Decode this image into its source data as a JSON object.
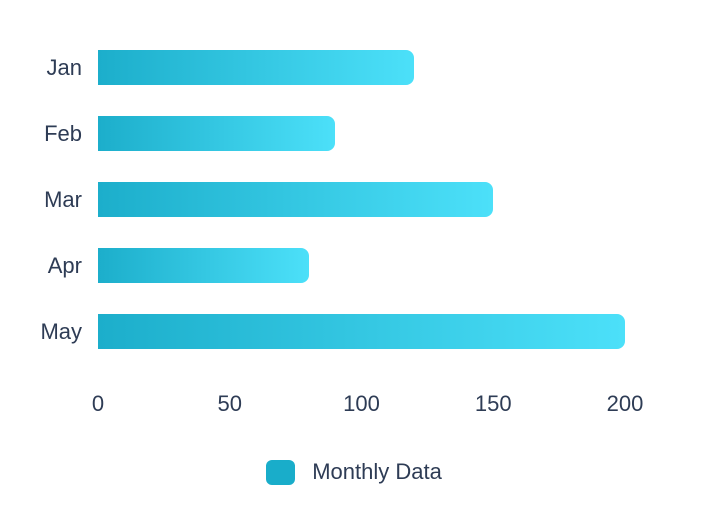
{
  "chart_data": {
    "type": "bar",
    "orientation": "horizontal",
    "title": "",
    "xlabel": "",
    "ylabel": "",
    "categories": [
      "Jan",
      "Feb",
      "Mar",
      "Apr",
      "May"
    ],
    "series": [
      {
        "name": "Monthly Data",
        "values": [
          120,
          90,
          150,
          80,
          200
        ]
      }
    ],
    "xlim": [
      0,
      200
    ],
    "x_ticks": [
      0,
      50,
      100,
      150,
      200
    ],
    "grid": false,
    "legend_position": "bottom",
    "colors": {
      "bar_gradient_start": "#1caecb",
      "bar_gradient_end": "#4ce0f9",
      "legend_swatch": "#19adca",
      "text": "#2e3c55",
      "background": "#ffffff"
    }
  },
  "legend": {
    "label": "Monthly Data"
  }
}
